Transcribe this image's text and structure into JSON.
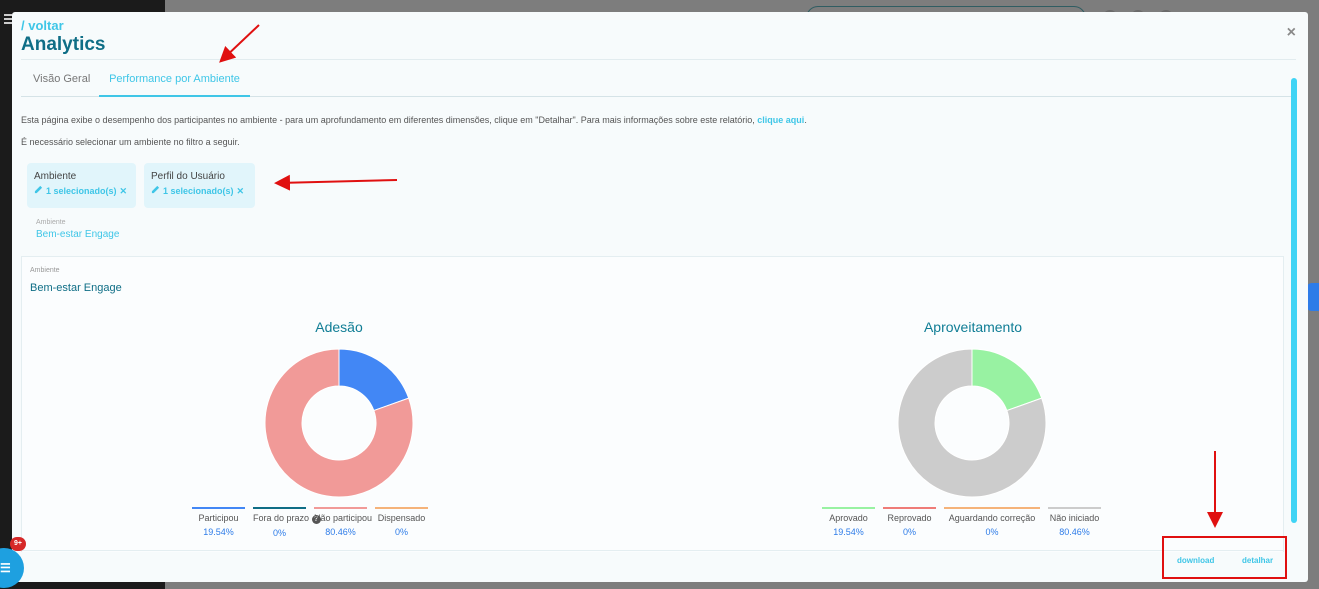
{
  "header": {
    "back_label": "/ voltar",
    "title": "Analytics",
    "close_glyph": "×"
  },
  "tabs": [
    {
      "label": "Visão Geral",
      "active": false
    },
    {
      "label": "Performance por Ambiente",
      "active": true
    }
  ],
  "description": {
    "text": "Esta página exibe o desempenho dos participantes no ambiente - para um aprofundamento em diferentes dimensões, clique em \"Detalhar\". Para mais informações sobre este relatório, ",
    "link": "clique aqui",
    "end": ".",
    "required": "É necessário selecionar um ambiente no filtro a seguir."
  },
  "filters": [
    {
      "label": "Ambiente",
      "value": "1 selecionado(s)"
    },
    {
      "label": "Perfil do Usuário",
      "value": "1 selecionado(s)"
    }
  ],
  "selected": {
    "label": "Ambiente",
    "value": "Bem-estar Engage"
  },
  "panel": {
    "label": "Ambiente",
    "title": "Bem-estar Engage"
  },
  "chart_data": [
    {
      "type": "pie",
      "title": "Adesão",
      "donut": true,
      "slices": [
        {
          "name": "Participou",
          "value": 19.54,
          "display": "19.54%",
          "color": "#4287f5"
        },
        {
          "name": "Fora do prazo",
          "value": 0,
          "display": "0%",
          "color": "#0f6e86"
        },
        {
          "name": "Não participou",
          "value": 80.46,
          "display": "80.46%",
          "color": "#f19a98"
        },
        {
          "name": "Dispensado",
          "value": 0,
          "display": "0%",
          "color": "#f5b37a"
        }
      ]
    },
    {
      "type": "pie",
      "title": "Aproveitamento",
      "donut": true,
      "slices": [
        {
          "name": "Aprovado",
          "value": 19.54,
          "display": "19.54%",
          "color": "#98f2a2"
        },
        {
          "name": "Reprovado",
          "value": 0,
          "display": "0%",
          "color": "#ef7c78"
        },
        {
          "name": "Aguardando correção",
          "value": 0,
          "display": "0%",
          "color": "#f5b37a"
        },
        {
          "name": "Não iniciado",
          "value": 80.46,
          "display": "80.46%",
          "color": "#cccccc"
        }
      ]
    }
  ],
  "footer": {
    "download_label": "download",
    "detail_label": "detalhar"
  },
  "chat": {
    "badge": "9+"
  },
  "icons": {
    "pencil": "pencil-icon",
    "remove": "x-icon",
    "help": "question-circle-icon",
    "chat": "chat-icon"
  }
}
